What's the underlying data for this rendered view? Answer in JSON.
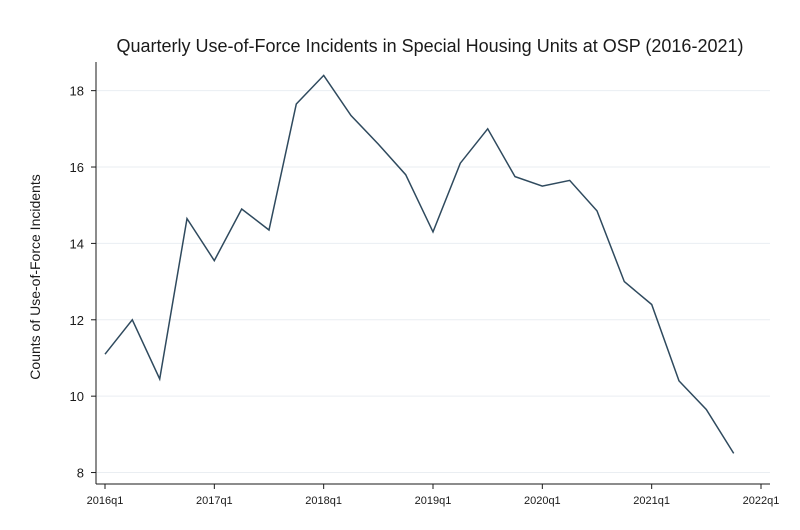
{
  "chart_data": {
    "type": "line",
    "title": "Quarterly Use-of-Force Incidents in Special Housing Units at OSP (2016-2021)",
    "xlabel": "",
    "ylabel": "Counts of Use-of-Force Incidents",
    "x": [
      "2016q1",
      "2016q2",
      "2016q3",
      "2016q4",
      "2017q1",
      "2017q2",
      "2017q3",
      "2017q4",
      "2018q1",
      "2018q2",
      "2018q3",
      "2018q4",
      "2019q1",
      "2019q2",
      "2019q3",
      "2019q4",
      "2020q1",
      "2020q2",
      "2020q3",
      "2020q4",
      "2021q1",
      "2021q2",
      "2021q3",
      "2021q4"
    ],
    "series": [
      {
        "values": [
          11.1,
          12.0,
          10.45,
          14.65,
          13.55,
          14.9,
          14.35,
          17.65,
          18.4,
          17.35,
          16.6,
          15.8,
          14.3,
          16.1,
          17.0,
          15.75,
          15.5,
          15.65,
          14.85,
          13.0,
          12.4,
          10.4,
          9.65,
          8.5
        ]
      }
    ],
    "x_ticks": [
      "2016q1",
      "2017q1",
      "2018q1",
      "2019q1",
      "2020q1",
      "2021q1",
      "2022q1"
    ],
    "y_ticks": [
      8,
      10,
      12,
      14,
      16,
      18
    ],
    "ylim": [
      7.7,
      18.75
    ],
    "xlim": [
      "2016q1",
      "2022q1"
    ],
    "grid": true,
    "line_color": "#2f4a5e",
    "grid_color": "#eaeef2"
  }
}
